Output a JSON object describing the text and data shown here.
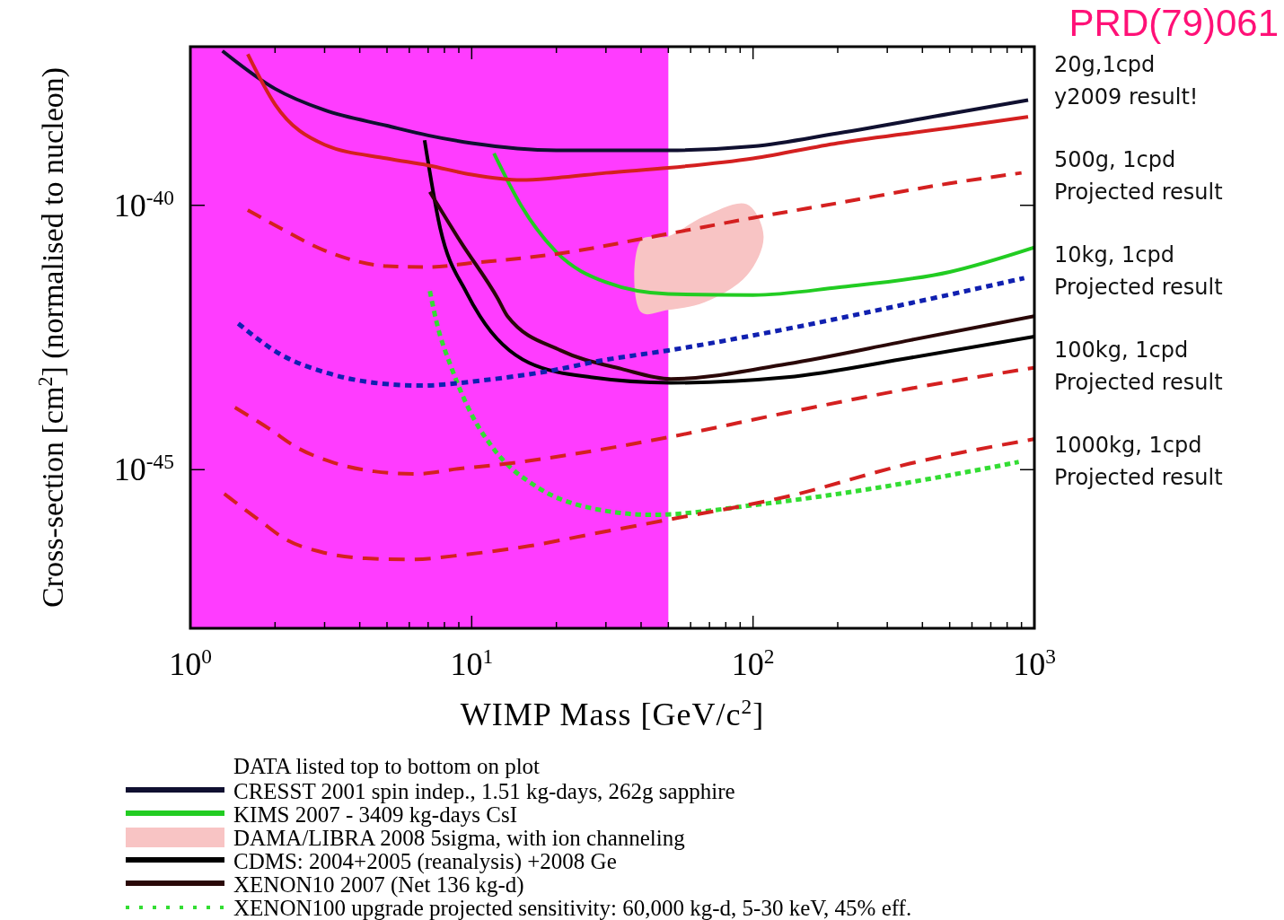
{
  "chart_data": {
    "type": "line",
    "xlabel": "WIMP Mass [GeV/c$^{2}$]",
    "ylabel": "Cross-section [cm$^{2}$] (normalised to nucleon)",
    "log": "xy",
    "xlim": [
      1,
      1000
    ],
    "ylim": [
      1e-48,
      1e-37
    ],
    "xticks": [
      {
        "value": 1,
        "label": "10$^{0}$"
      },
      {
        "value": 2,
        "label": null
      },
      {
        "value": 3,
        "label": null
      },
      {
        "value": 4,
        "label": null
      },
      {
        "value": 5,
        "label": null
      },
      {
        "value": 6,
        "label": null
      },
      {
        "value": 7,
        "label": null
      },
      {
        "value": 8,
        "label": null
      },
      {
        "value": 9,
        "label": null
      },
      {
        "value": 10,
        "label": "10$^{1}$"
      },
      {
        "value": 20,
        "label": null
      },
      {
        "value": 30,
        "label": null
      },
      {
        "value": 40,
        "label": null
      },
      {
        "value": 50,
        "label": null
      },
      {
        "value": 60,
        "label": null
      },
      {
        "value": 70,
        "label": null
      },
      {
        "value": 80,
        "label": null
      },
      {
        "value": 90,
        "label": null
      },
      {
        "value": 100,
        "label": "10$^{2}$"
      },
      {
        "value": 200,
        "label": null
      },
      {
        "value": 300,
        "label": null
      },
      {
        "value": 400,
        "label": null
      },
      {
        "value": 500,
        "label": null
      },
      {
        "value": 600,
        "label": null
      },
      {
        "value": 700,
        "label": null
      },
      {
        "value": 800,
        "label": null
      },
      {
        "value": 900,
        "label": null
      },
      {
        "value": 1000,
        "label": "10$^{3}$"
      }
    ],
    "yticks": [
      {
        "value": 1e-40,
        "label": "10$^{-40}$"
      },
      {
        "value": 1e-45,
        "label": "10$^{-45}$"
      }
    ],
    "bands": [
      {
        "axis": "x",
        "from": 1,
        "to": 50,
        "color": "#ff3cff"
      }
    ],
    "legend": "bottom",
    "legend_title": "DATA listed top to bottom on plot",
    "annotations": [
      "PRD(79)061",
      "20g,1cpd\ny2009 result!",
      "500g, 1cpd\nProjected result",
      "10kg, 1cpd\nProjected result",
      "100kg, 1cpd\nProjected result",
      "1000kg, 1cpd\nProjected result"
    ],
    "series": [
      {
        "name": "CRESST 2001 spin indep., 1.51 kg-days, 262g sapphire",
        "color": "#101030",
        "line_style": "solid",
        "x": [
          1.3,
          2,
          3,
          5,
          7,
          10,
          20,
          50,
          100,
          200,
          500,
          950
        ],
        "values": [
          8.3e-38,
          1.6e-38,
          6.3e-39,
          3.2e-39,
          2.1e-39,
          1.5e-39,
          1.1e-39,
          1.1e-39,
          1.3e-39,
          2.3e-39,
          5.4e-39,
          9.8e-39
        ]
      },
      {
        "name": "KIMS 2007 - 3409 kg-days CsI",
        "color": "#22cc22",
        "line_style": "solid",
        "x": [
          12,
          15,
          20,
          30,
          50,
          100,
          200,
          500,
          1000
        ],
        "values": [
          9.6e-40,
          9.8e-41,
          1.3e-41,
          3.5e-42,
          2.1e-42,
          2e-42,
          2.8e-42,
          5.5e-42,
          1.6e-41
        ]
      },
      {
        "name": "DAMA/LIBRA 2008 5sigma, with ion channeling",
        "type": "area",
        "color": "#f8c4c4",
        "x": [
          40,
          50,
          67,
          95,
          109,
          95,
          67,
          50,
          40
        ],
        "values": [
          2.2e-41,
          2.6e-41,
          6.2e-41,
          1.05e-40,
          2.6e-41,
          4.7e-42,
          1.45e-42,
          1.05e-42,
          9.5e-43
        ]
      },
      {
        "name": "CDMS: 2004+2005 (reanalysis) +2008 Ge",
        "color": "#000000",
        "line_style": "solid",
        "x": [
          6.8,
          7.7,
          9.6,
          10.7,
          16,
          26.5,
          51,
          132,
          360,
          1000
        ],
        "values": [
          1.7e-39,
          4e-41,
          2.2e-42,
          8e-43,
          1.05e-43,
          5.6e-44,
          4.4e-44,
          5.6e-44,
          1.3e-43,
          3.3e-43
        ]
      },
      {
        "name": "XENON10 2007 (Net 136 kg-d)",
        "color": "#2a0808",
        "line_style": "solid",
        "x": [
          7.1,
          9.1,
          12.4,
          13.4,
          20.7,
          34,
          51,
          132,
          360,
          1000
        ],
        "values": [
          1.8e-40,
          2.1e-41,
          1.7e-42,
          8e-43,
          1.8e-43,
          8.1e-44,
          5.2e-44,
          1e-43,
          2.8e-43,
          8e-43
        ]
      },
      {
        "name": "XENON100 upgrade projected sensitivity: 60,000 kg-d, 5-30 keV, 45% eff.",
        "color": "#33dd33",
        "line_style": "dotted",
        "x": [
          7.1,
          7.5,
          8.5,
          10,
          12.1,
          17.3,
          25.2,
          44,
          105,
          760,
          880
        ],
        "values": [
          2.4e-42,
          6.2e-43,
          8.1e-44,
          1.1e-44,
          2.3e-45,
          4.5e-46,
          2e-46,
          1.4e-46,
          2.2e-46,
          1.2e-45,
          1.4e-45
        ]
      },
      {
        "color": "#d42020",
        "line_style": "solid",
        "x": [
          1.6,
          2,
          3,
          5,
          7,
          10,
          15,
          20,
          30,
          50,
          100,
          200,
          500,
          950
        ],
        "values": [
          7.2e-38,
          8.1e-39,
          1.4e-39,
          7.7e-40,
          5.7e-40,
          3.8e-40,
          3e-40,
          3.3e-40,
          4.1e-40,
          5.1e-40,
          7.7e-40,
          1.5e-39,
          2.9e-39,
          4.7e-39
        ]
      },
      {
        "color": "#d42020",
        "line_style": "dashed",
        "x": [
          1.6,
          2,
          3,
          5,
          7,
          10,
          20,
          50,
          100,
          200,
          500,
          900
        ],
        "values": [
          8.1e-41,
          4.2e-41,
          1.4e-41,
          7.1e-42,
          6.8e-42,
          8.1e-42,
          1.2e-41,
          2.9e-41,
          5.8e-41,
          1.1e-40,
          2.6e-40,
          4.1e-40
        ]
      },
      {
        "color": "#1020b0",
        "line_style": "dotted",
        "x": [
          1.48,
          2.1,
          3.08,
          4.5,
          6.6,
          11,
          18.2,
          30,
          50,
          132,
          360,
          920
        ],
        "values": [
          5.8e-43,
          1.5e-43,
          6.7e-44,
          4.4e-44,
          3.9e-44,
          4.9e-44,
          7.1e-44,
          1.2e-43,
          1.8e-43,
          4.6e-43,
          1.4e-42,
          4.2e-42
        ]
      },
      {
        "color": "#d42020",
        "line_style": "dashed",
        "x": [
          1.44,
          1.91,
          2.4,
          3.17,
          4.5,
          6.3,
          9.1,
          13.4,
          23.4,
          50,
          132,
          360,
          1000
        ],
        "values": [
          1.5e-44,
          5.9e-45,
          2.6e-45,
          1.4e-45,
          9.3e-46,
          8.3e-46,
          1.05e-45,
          1.3e-45,
          2e-45,
          4.1e-45,
          1.2e-44,
          3.4e-44,
          8.5e-44
        ]
      },
      {
        "color": "#d42020",
        "line_style": "dashed",
        "x": [
          1.32,
          1.76,
          2.2,
          2.9,
          4.2,
          6,
          9.6,
          16,
          26.5,
          48.5,
          132,
          360,
          1000
        ],
        "values": [
          3.5e-46,
          1.1e-46,
          4.7e-47,
          2.8e-47,
          2.1e-47,
          2e-47,
          2.5e-47,
          3.6e-47,
          6e-47,
          1.1e-46,
          3.1e-46,
          1.3e-45,
          3.8e-45
        ]
      }
    ]
  }
}
